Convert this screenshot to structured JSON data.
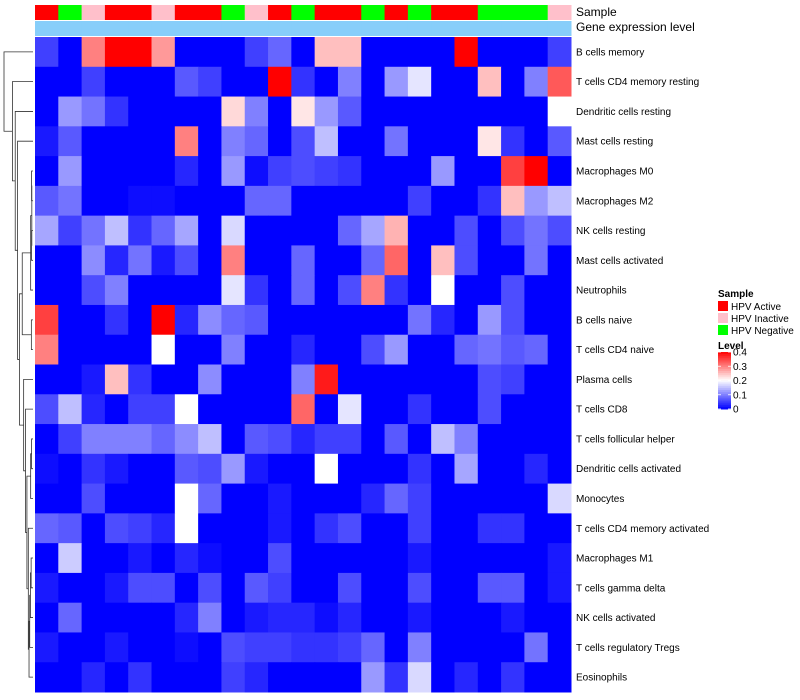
{
  "chart_data": {
    "type": "heatmap",
    "annotation_titles": [
      "Sample",
      "Gene expression level"
    ],
    "sample_groups": [
      "HPV Active",
      "HPV Negative",
      "HPV Inactive",
      "HPV Active",
      "HPV Active",
      "HPV Inactive",
      "HPV Active",
      "HPV Active",
      "HPV Negative",
      "HPV Inactive",
      "HPV Active",
      "HPV Negative",
      "HPV Active",
      "HPV Active",
      "HPV Negative",
      "HPV Active",
      "HPV Negative",
      "HPV Active",
      "HPV Active",
      "HPV Negative",
      "HPV Negative",
      "HPV Negative",
      "HPV Inactive"
    ],
    "gene_expression_level": [
      1,
      1,
      1,
      1,
      1,
      1,
      1,
      1,
      1,
      1,
      1,
      1,
      1,
      1,
      1,
      1,
      1,
      1,
      1,
      1,
      1,
      1,
      1
    ],
    "rows": [
      "B cells memory",
      "T cells CD4 memory resting",
      "Dendritic cells resting",
      "Mast cells resting",
      "Macrophages M0",
      "Macrophages M2",
      "NK cells resting",
      "Mast cells activated",
      "Neutrophils",
      "B cells naive",
      "T cells CD4 naive",
      "Plasma cells",
      "T cells CD8",
      "T cells follicular helper",
      "Dendritic cells activated",
      "Monocytes",
      "T cells CD4 memory activated",
      "Macrophages M1",
      "T cells gamma delta",
      "NK cells activated",
      "T cells regulatory  Tregs",
      "Eosinophils"
    ],
    "values": [
      [
        0.05,
        0.0,
        0.3,
        0.4,
        0.4,
        0.28,
        0.0,
        0.0,
        0.0,
        0.05,
        0.08,
        0.0,
        0.25,
        0.25,
        0.0,
        0.0,
        0.0,
        0.0,
        0.4,
        0.0,
        0.0,
        0.0,
        0.05
      ],
      [
        0.0,
        0.0,
        0.05,
        0.0,
        0.0,
        0.0,
        0.07,
        0.05,
        0.0,
        0.0,
        0.4,
        0.04,
        0.0,
        0.1,
        0.0,
        0.12,
        0.18,
        0.0,
        0.0,
        0.25,
        0.0,
        0.1,
        0.33
      ],
      [
        0.0,
        0.12,
        0.09,
        0.04,
        0.0,
        0.0,
        0.0,
        0.0,
        0.23,
        0.1,
        0.0,
        0.22,
        0.12,
        0.07,
        0.0,
        0.0,
        0.0,
        0.0,
        0.0,
        0.0,
        0.0,
        0.0,
        0.2
      ],
      [
        0.02,
        0.07,
        0.0,
        0.0,
        0.0,
        0.0,
        0.3,
        0.0,
        0.1,
        0.08,
        0.0,
        0.06,
        0.15,
        0.0,
        0.0,
        0.09,
        0.0,
        0.0,
        0.0,
        0.22,
        0.04,
        0.0,
        0.07
      ],
      [
        0.0,
        0.12,
        0.0,
        0.0,
        0.0,
        0.0,
        0.03,
        0.0,
        0.12,
        0.01,
        0.05,
        0.06,
        0.05,
        0.04,
        0.0,
        0.0,
        0.0,
        0.12,
        0.0,
        0.0,
        0.35,
        0.4,
        0.0
      ],
      [
        0.07,
        0.09,
        0.0,
        0.0,
        0.01,
        0.01,
        0.0,
        0.0,
        0.0,
        0.08,
        0.08,
        0.0,
        0.0,
        0.0,
        0.0,
        0.0,
        0.05,
        0.0,
        0.0,
        0.04,
        0.25,
        0.12,
        0.15
      ],
      [
        0.13,
        0.05,
        0.09,
        0.15,
        0.04,
        0.08,
        0.13,
        0.0,
        0.17,
        0.0,
        0.0,
        0.0,
        0.0,
        0.08,
        0.13,
        0.26,
        0.0,
        0.0,
        0.06,
        0.0,
        0.06,
        0.09,
        0.06
      ],
      [
        0.0,
        0.0,
        0.11,
        0.03,
        0.09,
        0.02,
        0.06,
        0.0,
        0.3,
        0.0,
        0.0,
        0.08,
        0.0,
        0.0,
        0.08,
        0.32,
        0.0,
        0.25,
        0.06,
        0.0,
        0.0,
        0.09,
        0.0
      ],
      [
        0.0,
        0.0,
        0.06,
        0.1,
        0.0,
        0.0,
        0.0,
        0.0,
        0.18,
        0.04,
        0.0,
        0.08,
        0.0,
        0.06,
        0.3,
        0.04,
        0.0,
        0.2,
        0.0,
        0.0,
        0.06,
        0.0,
        0.0
      ],
      [
        0.35,
        0.0,
        0.0,
        0.04,
        0.0,
        0.4,
        0.03,
        0.11,
        0.08,
        0.07,
        0.0,
        0.0,
        0.0,
        0.0,
        0.0,
        0.0,
        0.09,
        0.03,
        0.0,
        0.12,
        0.06,
        0.0,
        0.0
      ],
      [
        0.3,
        0.0,
        0.0,
        0.0,
        0.0,
        0.2,
        0.0,
        0.0,
        0.1,
        0.0,
        0.0,
        0.03,
        0.0,
        0.0,
        0.06,
        0.12,
        0.0,
        0.0,
        0.08,
        0.09,
        0.07,
        0.08,
        0.0
      ],
      [
        0.0,
        0.0,
        0.02,
        0.25,
        0.04,
        0.0,
        0.0,
        0.11,
        0.0,
        0.0,
        0.0,
        0.1,
        0.38,
        0.0,
        0.0,
        0.0,
        0.0,
        0.0,
        0.0,
        0.06,
        0.05,
        0.0,
        0.0
      ],
      [
        0.06,
        0.15,
        0.03,
        0.0,
        0.05,
        0.05,
        0.2,
        0.0,
        0.0,
        0.0,
        0.0,
        0.32,
        0.0,
        0.18,
        0.0,
        0.0,
        0.04,
        0.0,
        0.0,
        0.06,
        0.0,
        0.0,
        0.0
      ],
      [
        0.0,
        0.05,
        0.1,
        0.1,
        0.1,
        0.08,
        0.11,
        0.15,
        0.0,
        0.07,
        0.06,
        0.03,
        0.05,
        0.05,
        0.0,
        0.07,
        0.0,
        0.15,
        0.1,
        0.0,
        0.0,
        0.0,
        0.0
      ],
      [
        0.01,
        0.0,
        0.04,
        0.02,
        0.0,
        0.0,
        0.07,
        0.06,
        0.12,
        0.02,
        0.0,
        0.0,
        0.2,
        0.0,
        0.0,
        0.0,
        0.04,
        0.0,
        0.13,
        0.0,
        0.0,
        0.03,
        0.0
      ],
      [
        0.0,
        0.0,
        0.06,
        0.0,
        0.0,
        0.0,
        0.2,
        0.08,
        0.0,
        0.0,
        0.02,
        0.0,
        0.0,
        0.0,
        0.03,
        0.08,
        0.05,
        0.0,
        0.0,
        0.0,
        0.0,
        0.0,
        0.17
      ],
      [
        0.08,
        0.07,
        0.0,
        0.06,
        0.05,
        0.03,
        0.2,
        0.0,
        0.0,
        0.0,
        0.02,
        0.0,
        0.04,
        0.06,
        0.0,
        0.0,
        0.05,
        0.0,
        0.0,
        0.04,
        0.04,
        0.0,
        0.0
      ],
      [
        0.0,
        0.16,
        0.0,
        0.0,
        0.02,
        0.0,
        0.03,
        0.01,
        0.0,
        0.0,
        0.06,
        0.0,
        0.0,
        0.0,
        0.0,
        0.0,
        0.02,
        0.0,
        0.0,
        0.0,
        0.0,
        0.0,
        0.02
      ],
      [
        0.02,
        0.0,
        0.0,
        0.02,
        0.06,
        0.06,
        0.0,
        0.06,
        0.0,
        0.07,
        0.05,
        0.0,
        0.0,
        0.06,
        0.0,
        0.0,
        0.06,
        0.0,
        0.0,
        0.07,
        0.07,
        0.0,
        0.02
      ],
      [
        0.0,
        0.08,
        0.0,
        0.0,
        0.0,
        0.0,
        0.03,
        0.1,
        0.0,
        0.02,
        0.03,
        0.03,
        0.01,
        0.03,
        0.0,
        0.0,
        0.02,
        0.0,
        0.0,
        0.0,
        0.02,
        0.0,
        0.0
      ],
      [
        0.02,
        0.0,
        0.0,
        0.02,
        0.0,
        0.0,
        0.01,
        0.0,
        0.06,
        0.05,
        0.05,
        0.04,
        0.04,
        0.05,
        0.08,
        0.0,
        0.1,
        0.0,
        0.0,
        0.0,
        0.0,
        0.09,
        0.0
      ],
      [
        0.0,
        0.0,
        0.03,
        0.0,
        0.04,
        0.0,
        0.0,
        0.0,
        0.05,
        0.03,
        0.0,
        0.0,
        0.0,
        0.0,
        0.12,
        0.04,
        0.17,
        0.0,
        0.03,
        0.0,
        0.04,
        0.0,
        0.0
      ]
    ],
    "row_dendrogram": [
      [
        4,
        5,
        0.03
      ],
      [
        6,
        7,
        0.03
      ],
      [
        22,
        23,
        0.025
      ],
      [
        24,
        8,
        0.05
      ],
      [
        9,
        10,
        0.035
      ],
      [
        13,
        14,
        0.03
      ],
      [
        27,
        15,
        0.05
      ],
      [
        17,
        18,
        0.04
      ],
      [
        29,
        19,
        0.055
      ],
      [
        30,
        20,
        0.07
      ],
      [
        31,
        21,
        0.085
      ],
      [
        32,
        16,
        0.1
      ],
      [
        33,
        28,
        0.13
      ],
      [
        34,
        12,
        0.16
      ],
      [
        35,
        11,
        0.2
      ],
      [
        25,
        26,
        0.23
      ],
      [
        36,
        37,
        0.29
      ],
      [
        38,
        3,
        0.33
      ],
      [
        39,
        2,
        0.38
      ],
      [
        1,
        40,
        0.44
      ],
      [
        0,
        41,
        0.62
      ]
    ],
    "colorscale": {
      "low": "#0000ff",
      "mid": "#ffffff",
      "high": "#ff0000",
      "min": 0,
      "mid_value": 0.2,
      "max": 0.4
    },
    "legend": {
      "sample_title": "Sample",
      "sample_entries": [
        {
          "label": "HPV Active",
          "color": "#ff0000"
        },
        {
          "label": "HPV Inactive",
          "color": "#ffc0cb"
        },
        {
          "label": "HPV Negative",
          "color": "#00ff00"
        }
      ],
      "level_title": "Level",
      "level_ticks": [
        0.4,
        0.3,
        0.2,
        0.1,
        0
      ],
      "level_tick_labels": [
        "0.4",
        "0.3",
        "0.2",
        "0.1",
        "0"
      ]
    },
    "expression_color": "#87cefa",
    "xlabel": "",
    "ylabel": ""
  }
}
